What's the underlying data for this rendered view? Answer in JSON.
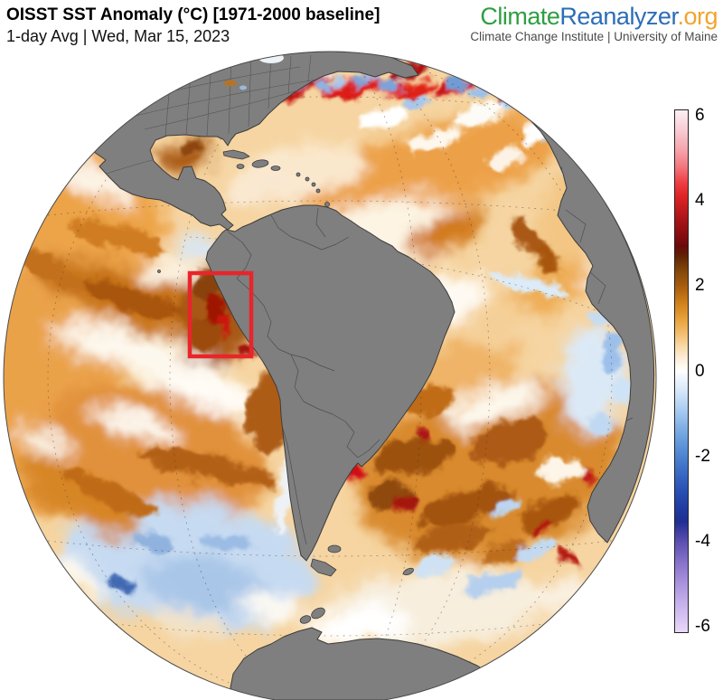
{
  "header": {
    "title": "OISST SST Anomaly (°C) [1971-2000 baseline]",
    "subtitle": "1-day Avg | Wed, Mar 15, 2023"
  },
  "brand": {
    "name_part_climate": "Climate",
    "name_part_reanalyzer": "Reanalyzer",
    "name_part_org": ".org",
    "tagline": "Climate Change Institute | University of Maine",
    "color_climate": "#2f9e41",
    "color_reanalyzer": "#2c6db6",
    "color_org": "#f2a32f",
    "color_tagline": "#4b4b4b"
  },
  "map": {
    "land_color": "#7f7f7f",
    "coast_color": "#3c3c3c",
    "ocean_base_color": "#f6d5a2",
    "graticule_color": "#333333",
    "highlight_box_color": "#e8252a"
  },
  "colorbar": {
    "unit": "°C",
    "vmax": 6.15,
    "vmin": -6.15,
    "tick_values": [
      6,
      4,
      2,
      0,
      -2,
      -4,
      -6
    ],
    "tick_labels": [
      "6",
      "4",
      "2",
      "0",
      "-2",
      "-4",
      "-6"
    ],
    "stops": [
      [
        6.15,
        "#fbf0f3"
      ],
      [
        5.7,
        "#f8cdd5"
      ],
      [
        5.2,
        "#f5a2aa"
      ],
      [
        4.8,
        "#f2747b"
      ],
      [
        4.45,
        "#ee3f45"
      ],
      [
        4.15,
        "#e02527"
      ],
      [
        3.9,
        "#c91d20"
      ],
      [
        3.6,
        "#ab1518"
      ],
      [
        3.25,
        "#8a0e11"
      ],
      [
        2.95,
        "#6b0a0b"
      ],
      [
        2.75,
        "#5f1f06"
      ],
      [
        2.55,
        "#6f3607"
      ],
      [
        2.3,
        "#8a4c0b"
      ],
      [
        2.05,
        "#a35a0e"
      ],
      [
        1.8,
        "#bd6f13"
      ],
      [
        1.55,
        "#d4861f"
      ],
      [
        1.3,
        "#e39c33"
      ],
      [
        1.05,
        "#eeb055"
      ],
      [
        0.8,
        "#f5c67f"
      ],
      [
        0.55,
        "#f9dcae"
      ],
      [
        0.3,
        "#fceeda"
      ],
      [
        0.1,
        "#fefaf1"
      ],
      [
        0,
        "#ffffff"
      ],
      [
        -0.1,
        "#f4f8fd"
      ],
      [
        -0.35,
        "#e0edfa"
      ],
      [
        -0.65,
        "#c4dcf5"
      ],
      [
        -0.95,
        "#a5caef"
      ],
      [
        -1.3,
        "#83b1e6"
      ],
      [
        -1.7,
        "#6197da"
      ],
      [
        -2.1,
        "#487dcd"
      ],
      [
        -2.5,
        "#3563c0"
      ],
      [
        -2.9,
        "#284bb0"
      ],
      [
        -3.25,
        "#203aa0"
      ],
      [
        -3.55,
        "#1e2f92"
      ],
      [
        -3.8,
        "#433fa3"
      ],
      [
        -4.1,
        "#6355b5"
      ],
      [
        -4.5,
        "#8672c9"
      ],
      [
        -4.95,
        "#a78fdb"
      ],
      [
        -5.45,
        "#c5afeb"
      ],
      [
        -6.15,
        "#e9d8f7"
      ]
    ]
  }
}
